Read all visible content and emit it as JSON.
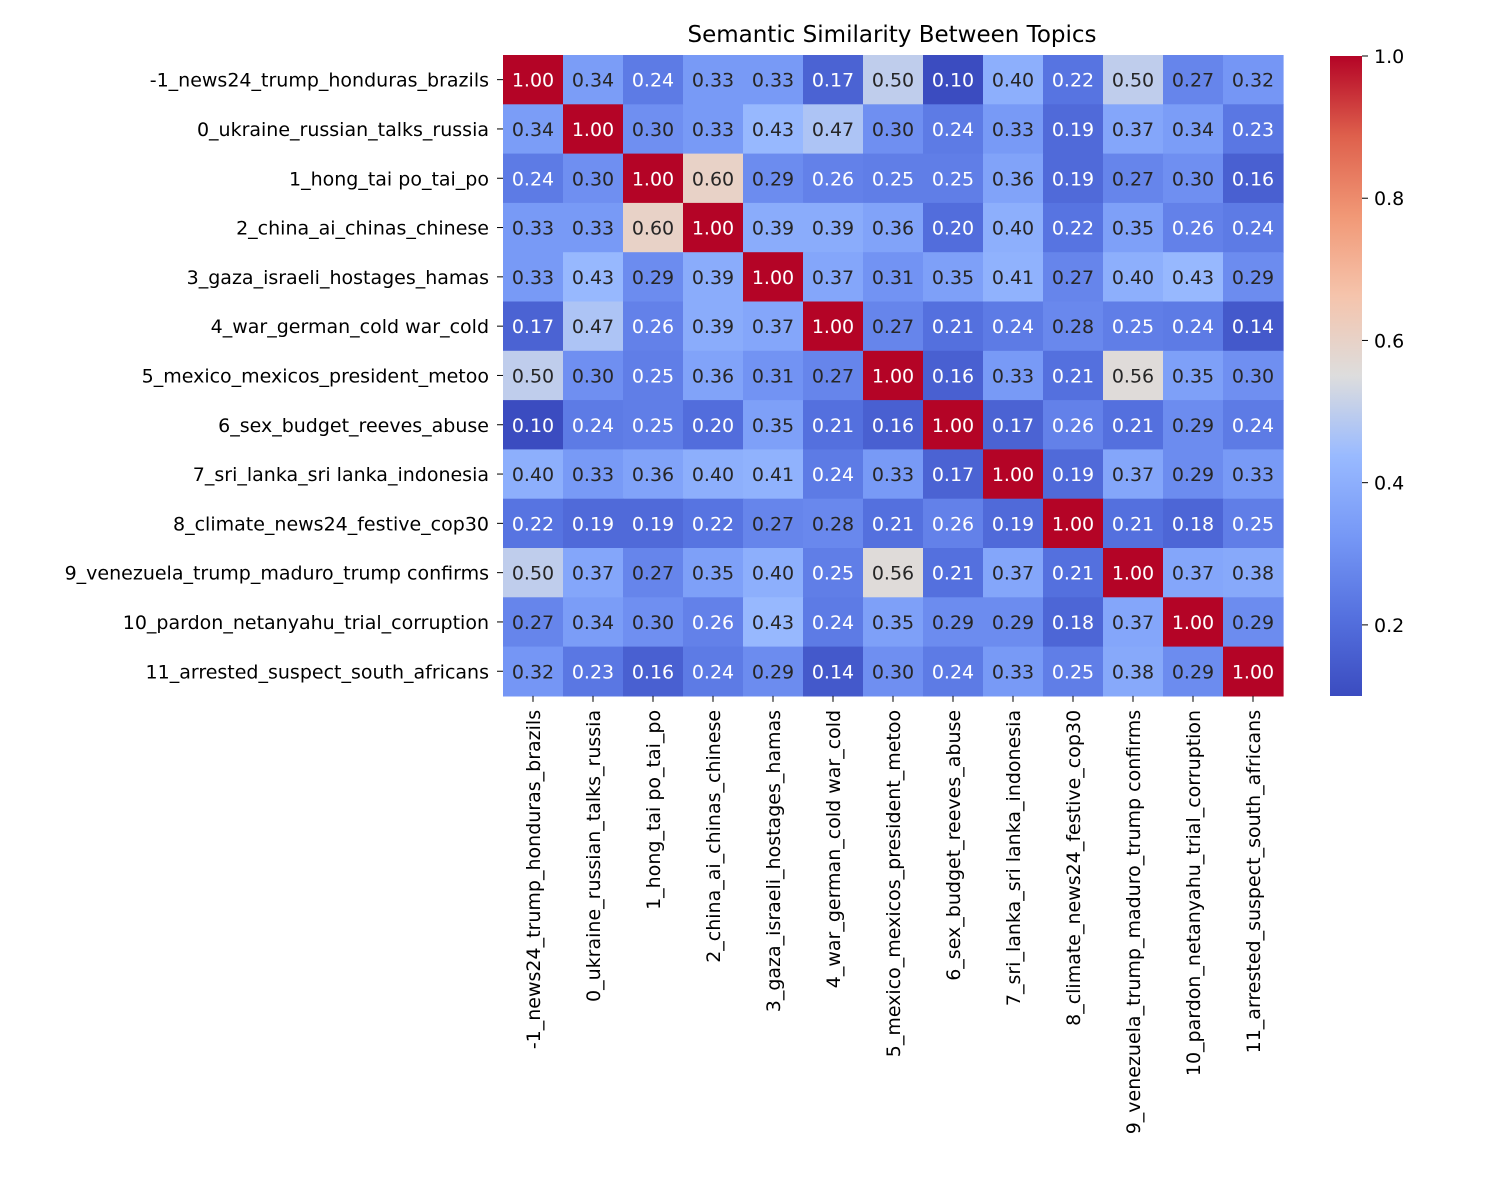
{
  "chart_data": {
    "type": "heatmap",
    "title": "Semantic Similarity Between Topics",
    "xlabel": "",
    "ylabel": "",
    "labels": [
      "-1_news24_trump_honduras_brazils",
      "0_ukraine_russian_talks_russia",
      "1_hong_tai po_tai_po",
      "2_china_ai_chinas_chinese",
      "3_gaza_israeli_hostages_hamas",
      "4_war_german_cold war_cold",
      "5_mexico_mexicos_president_metoo",
      "6_sex_budget_reeves_abuse",
      "7_sri_lanka_sri lanka_indonesia",
      "8_climate_news24_festive_cop30",
      "9_venezuela_trump_maduro_trump confirms",
      "10_pardon_netanyahu_trial_corruption",
      "11_arrested_suspect_south_africans"
    ],
    "matrix": [
      [
        1.0,
        0.34,
        0.24,
        0.33,
        0.33,
        0.17,
        0.5,
        0.1,
        0.4,
        0.22,
        0.5,
        0.27,
        0.32
      ],
      [
        0.34,
        1.0,
        0.3,
        0.33,
        0.43,
        0.47,
        0.3,
        0.24,
        0.33,
        0.19,
        0.37,
        0.34,
        0.23
      ],
      [
        0.24,
        0.3,
        1.0,
        0.6,
        0.29,
        0.26,
        0.25,
        0.25,
        0.36,
        0.19,
        0.27,
        0.3,
        0.16
      ],
      [
        0.33,
        0.33,
        0.6,
        1.0,
        0.39,
        0.39,
        0.36,
        0.2,
        0.4,
        0.22,
        0.35,
        0.26,
        0.24
      ],
      [
        0.33,
        0.43,
        0.29,
        0.39,
        1.0,
        0.37,
        0.31,
        0.35,
        0.41,
        0.27,
        0.4,
        0.43,
        0.29
      ],
      [
        0.17,
        0.47,
        0.26,
        0.39,
        0.37,
        1.0,
        0.27,
        0.21,
        0.24,
        0.28,
        0.25,
        0.24,
        0.14
      ],
      [
        0.5,
        0.3,
        0.25,
        0.36,
        0.31,
        0.27,
        1.0,
        0.16,
        0.33,
        0.21,
        0.56,
        0.35,
        0.3
      ],
      [
        0.1,
        0.24,
        0.25,
        0.2,
        0.35,
        0.21,
        0.16,
        1.0,
        0.17,
        0.26,
        0.21,
        0.29,
        0.24
      ],
      [
        0.4,
        0.33,
        0.36,
        0.4,
        0.41,
        0.24,
        0.33,
        0.17,
        1.0,
        0.19,
        0.37,
        0.29,
        0.33
      ],
      [
        0.22,
        0.19,
        0.19,
        0.22,
        0.27,
        0.28,
        0.21,
        0.26,
        0.19,
        1.0,
        0.21,
        0.18,
        0.25
      ],
      [
        0.5,
        0.37,
        0.27,
        0.35,
        0.4,
        0.25,
        0.56,
        0.21,
        0.37,
        0.21,
        1.0,
        0.37,
        0.38
      ],
      [
        0.27,
        0.34,
        0.3,
        0.26,
        0.43,
        0.24,
        0.35,
        0.29,
        0.29,
        0.18,
        0.37,
        1.0,
        0.29
      ],
      [
        0.32,
        0.23,
        0.16,
        0.24,
        0.29,
        0.14,
        0.3,
        0.24,
        0.33,
        0.25,
        0.38,
        0.29,
        1.0
      ]
    ],
    "annotation_format": "2 decimals",
    "colormap": "coolwarm",
    "color_range": [
      0.1,
      1.0
    ],
    "colorbar": {
      "ticks": [
        0.2,
        0.4,
        0.6,
        0.8,
        1.0
      ],
      "tick_labels": [
        "0.2",
        "0.4",
        "0.6",
        "0.8",
        "1.0"
      ],
      "position": "right"
    },
    "grid": false,
    "legend": "none"
  }
}
